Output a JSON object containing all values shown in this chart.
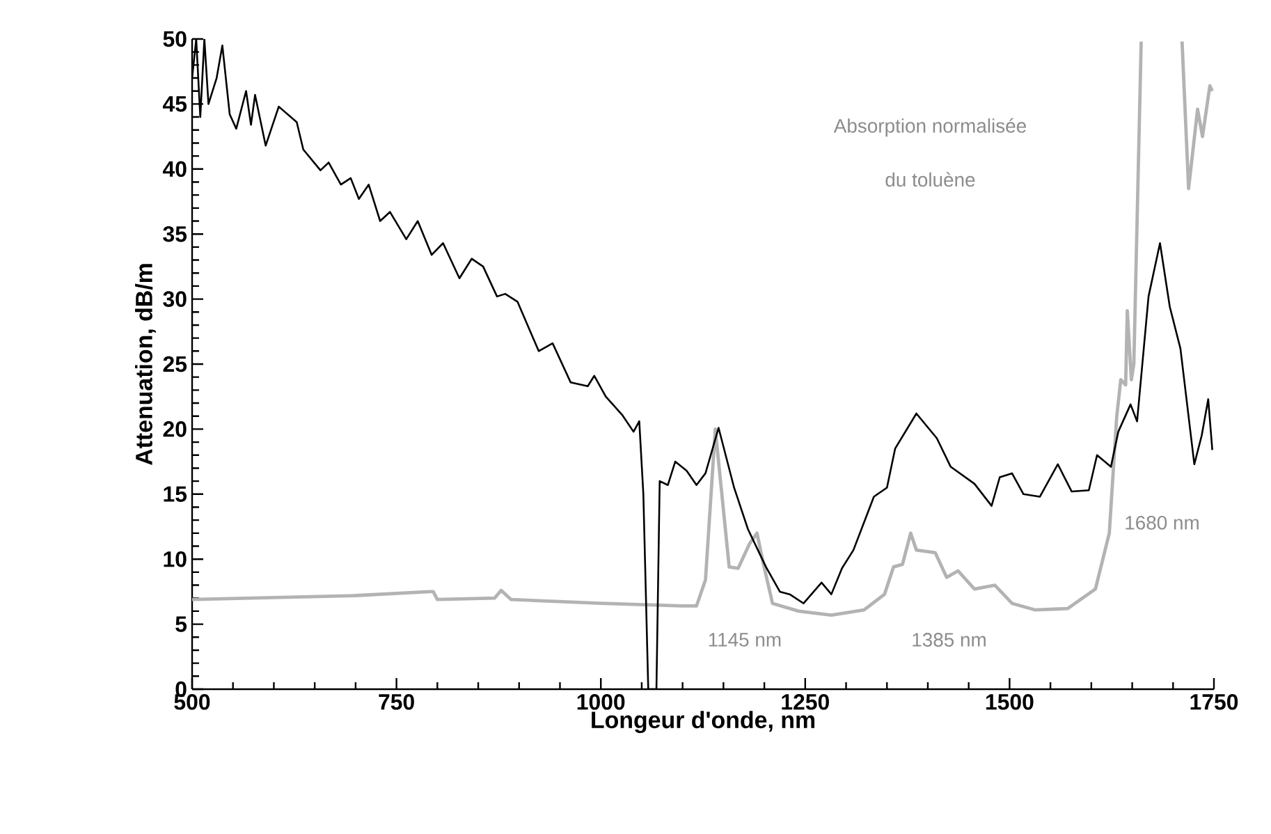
{
  "chart_data": {
    "type": "line",
    "xlabel": "Longeur d'onde, nm",
    "ylabel": "Attenuation, dB/m",
    "xlim": [
      500,
      1750
    ],
    "ylim": [
      0,
      50
    ],
    "xticks": [
      500,
      {
        "value": 550,
        "label": null
      },
      {
        "value": 600,
        "label": null
      },
      {
        "value": 650,
        "label": null
      },
      {
        "value": 700,
        "label": null
      },
      750,
      {
        "value": 800,
        "label": null
      },
      {
        "value": 850,
        "label": null
      },
      {
        "value": 900,
        "label": null
      },
      {
        "value": 950,
        "label": null
      },
      1000,
      {
        "value": 1050,
        "label": null
      },
      {
        "value": 1100,
        "label": null
      },
      {
        "value": 1150,
        "label": null
      },
      {
        "value": 1200,
        "label": null
      },
      1250,
      {
        "value": 1300,
        "label": null
      },
      {
        "value": 1350,
        "label": null
      },
      {
        "value": 1400,
        "label": null
      },
      {
        "value": 1450,
        "label": null
      },
      1500,
      {
        "value": 1550,
        "label": null
      },
      {
        "value": 1600,
        "label": null
      },
      {
        "value": 1650,
        "label": null
      },
      {
        "value": 1700,
        "label": null
      },
      1750
    ],
    "yticks": [
      0,
      {
        "value": 1,
        "label": null
      },
      {
        "value": 2,
        "label": null
      },
      {
        "value": 3,
        "label": null
      },
      {
        "value": 4,
        "label": null
      },
      5,
      {
        "value": 6,
        "label": null
      },
      {
        "value": 7,
        "label": null
      },
      {
        "value": 8,
        "label": null
      },
      {
        "value": 9,
        "label": null
      },
      10,
      {
        "value": 11,
        "label": null
      },
      {
        "value": 12,
        "label": null
      },
      {
        "value": 13,
        "label": null
      },
      {
        "value": 14,
        "label": null
      },
      15,
      {
        "value": 16,
        "label": null
      },
      {
        "value": 17,
        "label": null
      },
      {
        "value": 18,
        "label": null
      },
      {
        "value": 19,
        "label": null
      },
      20,
      {
        "value": 21,
        "label": null
      },
      {
        "value": 22,
        "label": null
      },
      {
        "value": 23,
        "label": null
      },
      {
        "value": 24,
        "label": null
      },
      25,
      {
        "value": 26,
        "label": null
      },
      {
        "value": 27,
        "label": null
      },
      {
        "value": 28,
        "label": null
      },
      {
        "value": 29,
        "label": null
      },
      30,
      {
        "value": 31,
        "label": null
      },
      {
        "value": 32,
        "label": null
      },
      {
        "value": 33,
        "label": null
      },
      {
        "value": 34,
        "label": null
      },
      35,
      {
        "value": 36,
        "label": null
      },
      {
        "value": 37,
        "label": null
      },
      {
        "value": 38,
        "label": null
      },
      {
        "value": 39,
        "label": null
      },
      40,
      {
        "value": 41,
        "label": null
      },
      {
        "value": 42,
        "label": null
      },
      {
        "value": 43,
        "label": null
      },
      {
        "value": 44,
        "label": null
      },
      45,
      {
        "value": 46,
        "label": null
      },
      {
        "value": 47,
        "label": null
      },
      {
        "value": 48,
        "label": null
      },
      {
        "value": 49,
        "label": null
      },
      50
    ],
    "marker": "none",
    "line_style": "solid",
    "series": [
      {
        "color": "#b3b3b3",
        "x": [
          500,
          700,
          790,
          795,
          800,
          870,
          878,
          890,
          1000,
          1100,
          1117,
          1128,
          1140,
          1157,
          1168,
          1182,
          1191,
          1199,
          1210,
          1242,
          1282,
          1322,
          1347,
          1358,
          1369,
          1379,
          1386,
          1409,
          1423,
          1437,
          1457,
          1482,
          1503,
          1531,
          1571,
          1605,
          1622,
          1631,
          1636,
          1642,
          1644,
          1649,
          1652,
          1661,
          1686,
          1711,
          1719,
          1730,
          1736,
          1745,
          1748
        ],
        "values": [
          6.9,
          7.2,
          7.5,
          7.5,
          6.9,
          7.0,
          7.6,
          6.9,
          6.6,
          6.4,
          6.4,
          8.4,
          20,
          9.4,
          9.3,
          11.2,
          12.0,
          9.6,
          6.6,
          6.0,
          5.7,
          6.1,
          7.3,
          9.4,
          9.6,
          12.0,
          10.7,
          10.5,
          8.6,
          9.1,
          7.7,
          8.0,
          6.6,
          6.1,
          6.2,
          7.7,
          12,
          20.9,
          23.8,
          23.4,
          29.1,
          23.8,
          25,
          49.8,
          null,
          49.8,
          38.5,
          44.6,
          42.5,
          46.4,
          46
        ]
      },
      {
        "color": "#000000",
        "x": [
          500,
          505,
          510,
          515,
          520,
          530,
          537,
          546,
          554,
          566,
          572,
          577,
          590,
          606,
          628,
          636,
          657,
          667,
          682,
          694,
          704,
          716,
          730,
          742,
          762,
          776,
          793,
          807,
          827,
          842,
          856,
          873,
          883,
          898,
          924,
          941,
          963,
          984,
          992,
          1006,
          1026,
          1040,
          1047,
          1052,
          1058,
          1062,
          1068,
          1072,
          1082,
          1091,
          1105,
          1117,
          1128,
          1144,
          1163,
          1180,
          1202,
          1219,
          1231,
          1248,
          1270,
          1282,
          1295,
          1309,
          1334,
          1350,
          1360,
          1386,
          1411,
          1428,
          1457,
          1478,
          1488,
          1503,
          1517,
          1537,
          1559,
          1576,
          1597,
          1607,
          1624,
          1633,
          1648,
          1656,
          1670,
          1684,
          1696,
          1709,
          1726,
          1735,
          1743,
          1748
        ],
        "values": [
          47,
          50,
          44,
          50,
          45,
          47,
          49.5,
          44.2,
          43.1,
          46.0,
          43.4,
          45.7,
          41.8,
          44.8,
          43.6,
          41.5,
          39.9,
          40.5,
          38.8,
          39.3,
          37.7,
          38.8,
          36.0,
          36.7,
          34.6,
          36.0,
          33.4,
          34.3,
          31.6,
          33.1,
          32.5,
          30.2,
          30.4,
          29.8,
          26.0,
          26.6,
          23.6,
          23.3,
          24.1,
          22.5,
          21.1,
          19.8,
          20.6,
          15,
          0,
          0,
          0,
          16,
          15.7,
          17.5,
          16.8,
          15.7,
          16.6,
          20.1,
          15.5,
          12.3,
          9.4,
          7.5,
          7.3,
          6.6,
          8.2,
          7.3,
          9.3,
          10.7,
          14.8,
          15.5,
          18.5,
          21.2,
          19.3,
          17.1,
          15.8,
          14.1,
          16.3,
          16.6,
          15.0,
          14.8,
          17.3,
          15.2,
          15.3,
          18.0,
          17.1,
          19.8,
          21.9,
          20.6,
          30.2,
          34.3,
          29.4,
          26.2,
          17.3,
          19.5,
          22.3,
          18.4
        ]
      }
    ],
    "annotations": [
      "Absorption normalisée",
      "du toluène",
      "1145 nm",
      "1385 nm",
      "1680 nm"
    ]
  }
}
